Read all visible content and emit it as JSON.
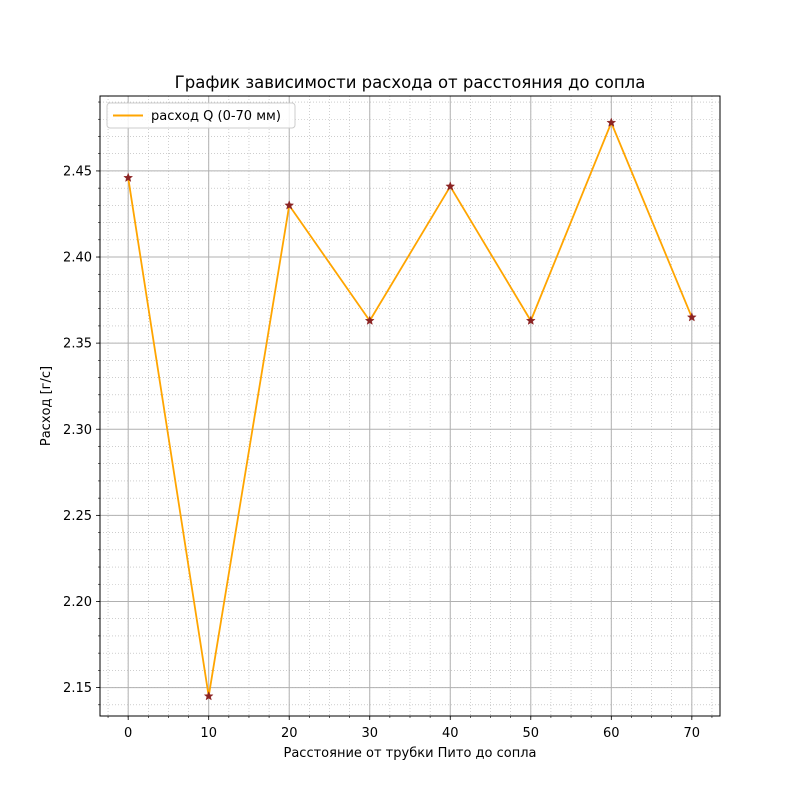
{
  "chart_data": {
    "type": "line",
    "title": "График зависимости расхода от расстояния до сопла",
    "xlabel": "Расстояние от трубки Пито до сопла",
    "ylabel": "Расход [г/с]",
    "x": [
      0,
      10,
      20,
      30,
      40,
      50,
      60,
      70
    ],
    "series": [
      {
        "name": "расход Q (0-70 мм)",
        "values": [
          2.446,
          2.145,
          2.43,
          2.363,
          2.441,
          2.363,
          2.478,
          2.365
        ],
        "color": "#ffa500",
        "marker": "star",
        "marker_color": "#8b2323"
      }
    ],
    "xlim": [
      -3.5,
      73.5
    ],
    "ylim": [
      2.1335,
      2.4935
    ],
    "xticks": [
      0,
      10,
      20,
      30,
      40,
      50,
      60,
      70
    ],
    "yticks": [
      2.15,
      2.2,
      2.25,
      2.3,
      2.35,
      2.4,
      2.45
    ],
    "ytick_labels": [
      "2.15",
      "2.20",
      "2.25",
      "2.30",
      "2.35",
      "2.40",
      "2.45"
    ],
    "x_minor_step": 2.5,
    "y_minor_step": 0.01,
    "grid": true,
    "minor_grid": true,
    "legend_position": "upper-left"
  }
}
